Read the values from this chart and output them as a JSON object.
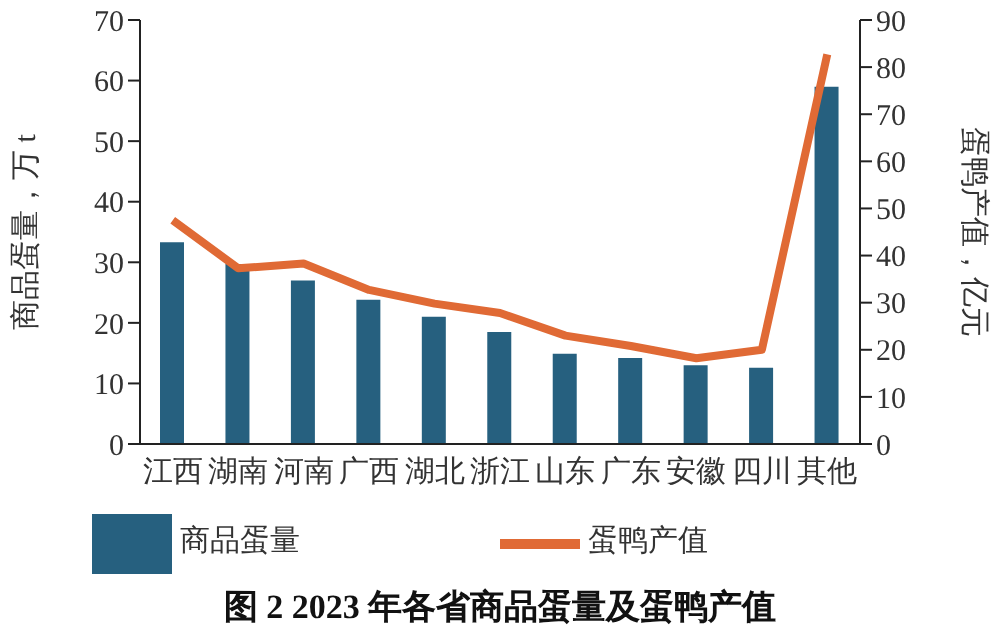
{
  "chart_data": {
    "type": "bar",
    "title": "图 2  2023 年各省商品蛋量及蛋鸭产值",
    "categories": [
      "江西",
      "湖南",
      "河南",
      "广西",
      "湖北",
      "浙江",
      "山东",
      "广东",
      "安徽",
      "四川",
      "其他"
    ],
    "ylabel": "商品蛋量，万 t",
    "y2label": "蛋鸭产值，亿元",
    "series": [
      {
        "name": "商品蛋量",
        "color": "#26607f",
        "values": [
          33.3,
          29.7,
          27,
          23.8,
          21,
          18.5,
          14.9,
          14.2,
          13,
          12.6,
          59
        ]
      },
      {
        "name": "蛋鸭产值",
        "type": "line",
        "axis": "y2",
        "color": "#e06a35",
        "values": [
          47.5,
          37.3,
          38.3,
          32.7,
          29.8,
          27.8,
          23,
          20.8,
          18.2,
          20,
          82.7
        ]
      }
    ],
    "ylim": [
      0,
      70
    ],
    "yticks": [
      0,
      10,
      20,
      30,
      40,
      50,
      60,
      70
    ],
    "y2lim": [
      0,
      90
    ],
    "y2ticks": [
      0,
      10,
      20,
      30,
      40,
      50,
      60,
      70,
      80,
      90
    ],
    "grid": false,
    "legend": "bottom",
    "marker": "none"
  }
}
